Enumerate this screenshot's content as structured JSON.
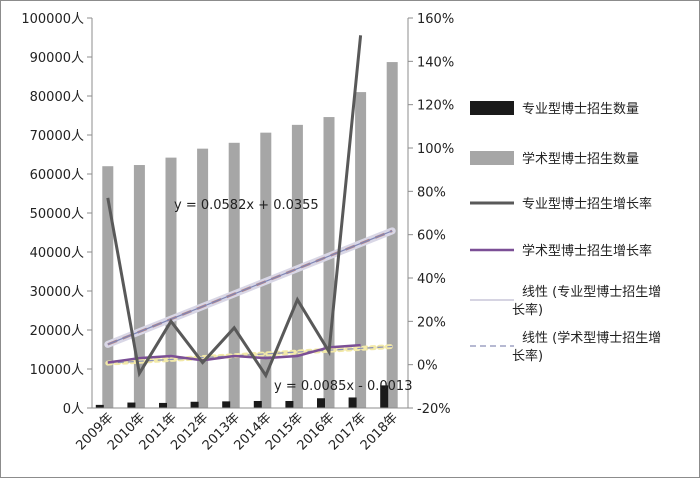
{
  "chart_data": {
    "type": "bar",
    "categories": [
      "2009年",
      "2010年",
      "2011年",
      "2012年",
      "2013年",
      "2014年",
      "2015年",
      "2016年",
      "2017年",
      "2018年"
    ],
    "left_axis": {
      "ylim": [
        0,
        100000
      ],
      "ticks": [
        "0人",
        "10000人",
        "20000人",
        "30000人",
        "40000人",
        "50000人",
        "60000人",
        "70000人",
        "80000人",
        "90000人",
        "100000人"
      ]
    },
    "right_axis": {
      "ylim": [
        -0.2,
        1.6
      ],
      "ticks": [
        "-20%",
        "0%",
        "20%",
        "40%",
        "60%",
        "80%",
        "100%",
        "120%",
        "140%",
        "160%"
      ]
    },
    "series": [
      {
        "name": "专业型博士招生数量",
        "kind": "bar",
        "axis": "left",
        "color": "#1a1a1a",
        "values": [
          800,
          1400,
          1300,
          1600,
          1700,
          1800,
          1800,
          2500,
          2700,
          5800
        ]
      },
      {
        "name": "学术型博士招生数量",
        "kind": "bar",
        "axis": "left",
        "color": "#a6a6a6",
        "values": [
          62000,
          62300,
          64200,
          66500,
          68000,
          70600,
          72600,
          74600,
          81000,
          88700
        ]
      },
      {
        "name": "专业型博士招生增长率",
        "kind": "line",
        "axis": "right",
        "color": "#595959",
        "values": [
          0.77,
          -0.04,
          0.2,
          0.01,
          0.17,
          -0.05,
          0.3,
          0.06,
          1.52,
          null
        ]
      },
      {
        "name": "学术型博士招生增长率",
        "kind": "line",
        "axis": "right",
        "color": "#7b4f96",
        "values": [
          0.01,
          0.03,
          0.04,
          0.02,
          0.04,
          0.03,
          0.04,
          0.08,
          0.09,
          null
        ]
      },
      {
        "name": "线性 (专业型博士招生增长率)",
        "kind": "trend",
        "axis": "right",
        "color": "#c9c6d8",
        "slope": 0.0582,
        "intercept": 0.0355
      },
      {
        "name": "线性 (学术型博士招生增长率)",
        "kind": "trend",
        "axis": "right",
        "color": "#8a8fb8",
        "slope": 0.0085,
        "intercept": -0.0013
      }
    ],
    "legend_labels": [
      [
        "专业型博士招生数量"
      ],
      [
        "学术型博士招生数量"
      ],
      [
        "专业型博士招生增长率"
      ],
      [
        "学术型博士招生增长率"
      ],
      [
        "线性 (专业型博士招生增",
        "长率)"
      ],
      [
        "线性 (学术型博士招生增",
        "长率)"
      ]
    ],
    "annotations": [
      {
        "text": "y = 0.0582x + 0.0355"
      },
      {
        "text": "y = 0.0085x - 0.0013"
      }
    ],
    "legend_position": "right",
    "grid": false
  }
}
